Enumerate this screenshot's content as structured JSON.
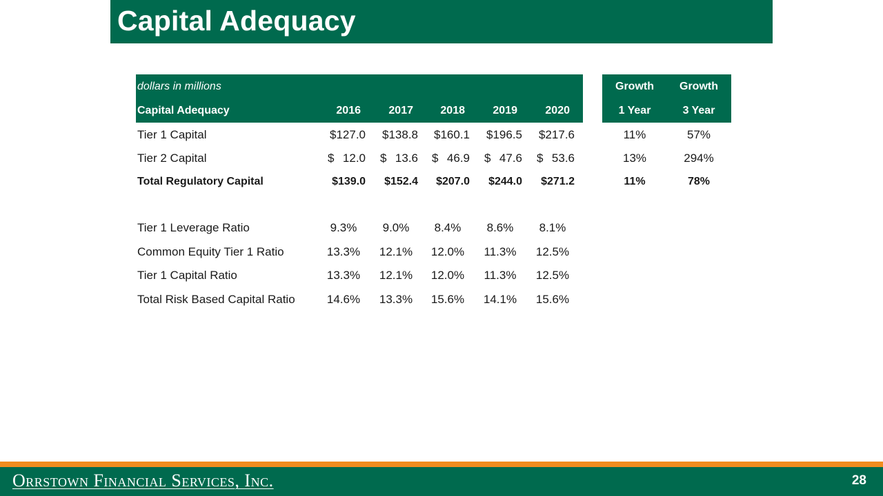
{
  "slide": {
    "title": "Capital Adequacy",
    "page_number": "28"
  },
  "table": {
    "units_note": "dollars in millions",
    "row_header_label": "Capital Adequacy",
    "years": [
      "2016",
      "2017",
      "2018",
      "2019",
      "2020"
    ],
    "growth_headers": [
      {
        "top": "Growth",
        "bottom": "1 Year"
      },
      {
        "top": "Growth",
        "bottom": "3 Year"
      }
    ],
    "rows": [
      {
        "label": "Tier 1 Capital",
        "values": [
          "$127.0",
          "$138.8",
          "$160.1",
          "$196.5",
          "$217.6"
        ],
        "growth": [
          "11%",
          "57%"
        ]
      },
      {
        "label": "Tier 2 Capital",
        "values": [
          "12.0",
          "13.6",
          "46.9",
          "47.6",
          "53.6"
        ],
        "growth": [
          "13%",
          "294%"
        ]
      },
      {
        "label": "Total Regulatory Capital",
        "values": [
          "$139.0",
          "$152.4",
          "$207.0",
          "$244.0",
          "$271.2"
        ],
        "growth": [
          "11%",
          "78%"
        ]
      },
      {
        "label": "Tier 1 Leverage Ratio",
        "values": [
          "9.3%",
          "9.0%",
          "8.4%",
          "8.6%",
          "8.1%"
        ]
      },
      {
        "label": "Common Equity Tier 1 Ratio",
        "values": [
          "13.3%",
          "12.1%",
          "12.0%",
          "11.3%",
          "12.5%"
        ]
      },
      {
        "label": "Tier 1 Capital Ratio",
        "values": [
          "13.3%",
          "12.1%",
          "12.0%",
          "11.3%",
          "12.5%"
        ]
      },
      {
        "label": "Total Risk Based Capital Ratio",
        "values": [
          "14.6%",
          "13.3%",
          "15.6%",
          "14.1%",
          "15.6%"
        ]
      }
    ],
    "dollar_sign": "$"
  },
  "footer": {
    "company_name": "Orrstown Financial Services, Inc."
  },
  "colors": {
    "brand_green": "#006a4e",
    "accent_orange": "#f28c1e"
  }
}
